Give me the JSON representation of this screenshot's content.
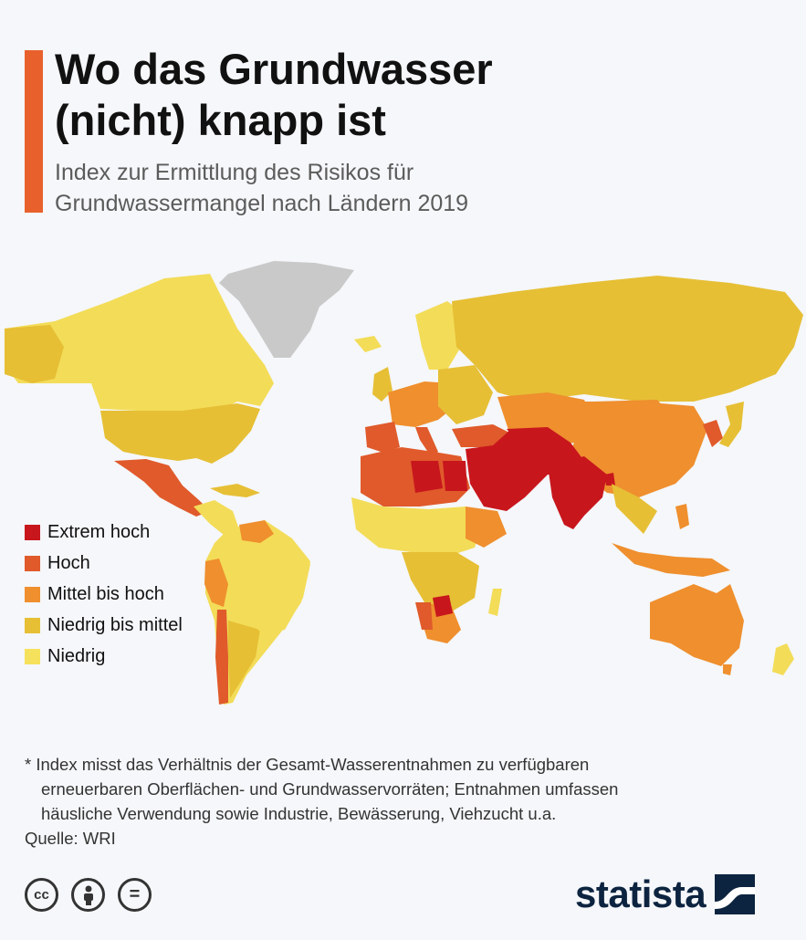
{
  "header": {
    "title_line1": "Wo das Grundwasser",
    "title_line2": "(nicht) knapp ist",
    "subtitle_line1": "Index zur Ermittlung des Risikos für",
    "subtitle_line2": "Grundwassermangel nach Ländern 2019"
  },
  "colors": {
    "accent": "#e8612c",
    "extreme": "#c8161d",
    "high": "#e05a2b",
    "medium_high": "#ef8f2e",
    "low_medium": "#e6bf35",
    "low": "#f6e15c",
    "no_data": "#c9c9c9"
  },
  "legend": {
    "items": [
      {
        "label": "Extrem hoch",
        "color": "#c8161d"
      },
      {
        "label": "Hoch",
        "color": "#e05a2b"
      },
      {
        "label": "Mittel bis hoch",
        "color": "#ef8f2e"
      },
      {
        "label": "Niedrig bis mittel",
        "color": "#e6bf35"
      },
      {
        "label": "Niedrig",
        "color": "#f6e15c"
      }
    ]
  },
  "footnote": {
    "line1": "* Index misst das Verhältnis der Gesamt-Wasserentnahmen zu verfügbaren",
    "line2": "erneuerbaren Oberflächen- und Grundwasservorräten; Entnahmen umfassen",
    "line3": "häusliche Verwendung sowie Industrie, Bewässerung, Viehzucht u.a."
  },
  "source": "Quelle: WRI",
  "license_icons": [
    "cc-icon",
    "attribution-icon",
    "no-derivatives-icon"
  ],
  "license_marks": {
    "cc": "cc",
    "nd": "="
  },
  "brand": {
    "name": "statista"
  }
}
